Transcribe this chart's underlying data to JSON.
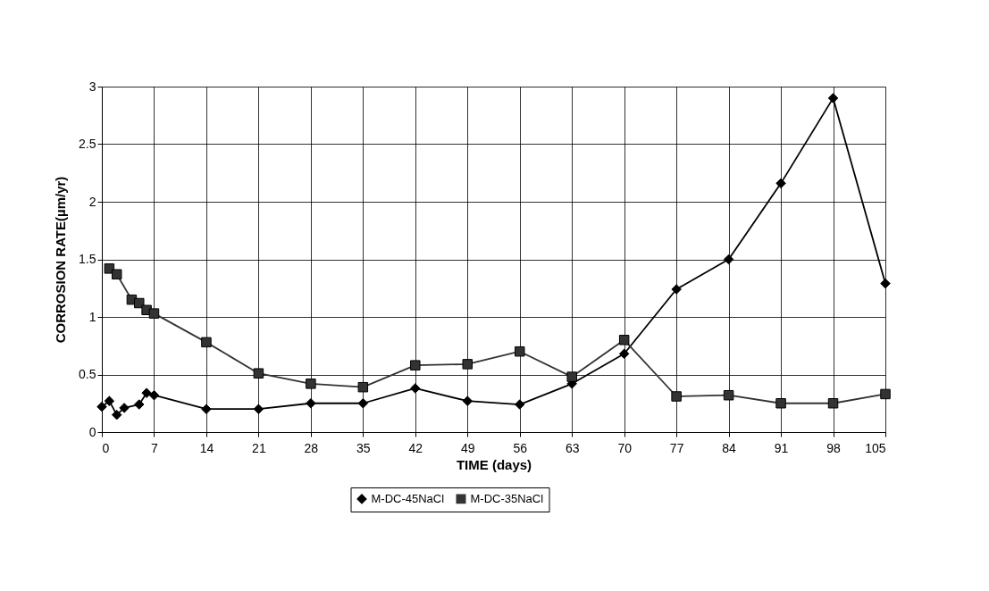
{
  "chart_data": {
    "type": "line",
    "xlabel": "TIME (days)",
    "ylabel": "CORROSION RATE(µm/yr)",
    "xlim": [
      0,
      105
    ],
    "xticks": [
      0,
      7,
      14,
      21,
      28,
      35,
      42,
      49,
      56,
      63,
      70,
      77,
      84,
      91,
      98,
      105
    ],
    "ylim": [
      0,
      3
    ],
    "yticks": [
      0,
      0.5,
      1,
      1.5,
      2,
      2.5,
      3
    ],
    "grid": true,
    "legend": "bottom",
    "line_style": "solid",
    "series": [
      {
        "name": "M-DC-45NaCl",
        "color": "#000000",
        "marker": "diamond",
        "x": [
          0,
          1,
          2,
          3,
          5,
          6,
          7,
          14,
          21,
          28,
          35,
          42,
          49,
          56,
          63,
          70,
          77,
          84,
          91,
          98,
          105
        ],
        "values": [
          0.22,
          0.27,
          0.15,
          0.21,
          0.24,
          0.34,
          0.32,
          0.2,
          0.2,
          0.25,
          0.25,
          0.38,
          0.27,
          0.24,
          0.42,
          0.68,
          1.24,
          1.5,
          2.16,
          2.9,
          1.29
        ]
      },
      {
        "name": "M-DC-35NaCl",
        "color": "#333333",
        "marker": "square",
        "x": [
          1,
          2,
          4,
          5,
          6,
          7,
          14,
          21,
          28,
          35,
          42,
          49,
          56,
          63,
          70,
          77,
          84,
          91,
          98,
          105
        ],
        "values": [
          1.42,
          1.37,
          1.15,
          1.12,
          1.06,
          1.03,
          0.78,
          0.51,
          0.42,
          0.39,
          0.58,
          0.59,
          0.7,
          0.48,
          0.8,
          0.31,
          0.32,
          0.25,
          0.25,
          0.33
        ]
      }
    ]
  }
}
